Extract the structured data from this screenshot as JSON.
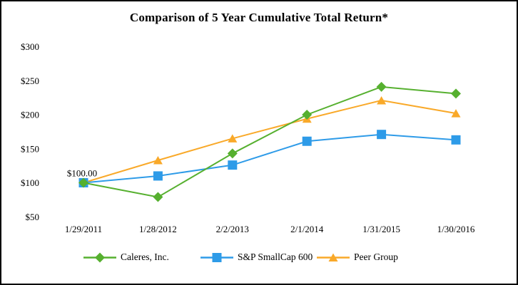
{
  "chart_data": {
    "type": "line",
    "title": "Comparison of 5 Year Cumulative Total Return*",
    "categories": [
      "1/29/2011",
      "1/28/2012",
      "2/2/2013",
      "2/1/2014",
      "1/31/2015",
      "1/30/2016"
    ],
    "series": [
      {
        "name": "Caleres, Inc.",
        "marker": "diamond",
        "color": "#56B02F",
        "values": [
          100,
          79,
          143,
          200,
          241,
          231
        ]
      },
      {
        "name": "S&P SmallCap 600",
        "marker": "square",
        "color": "#2E9BE8",
        "values": [
          100,
          110,
          126,
          161,
          171,
          163
        ]
      },
      {
        "name": "Peer Group",
        "marker": "triangle",
        "color": "#F9A929",
        "values": [
          100,
          133,
          165,
          194,
          221,
          202
        ]
      }
    ],
    "ylim": [
      50,
      300
    ],
    "yticks": [
      300,
      250,
      200,
      150,
      100,
      50
    ],
    "ytick_prefix": "$",
    "xlabel": "",
    "ylabel": "",
    "grid": false,
    "legend_position": "bottom",
    "annotations": [
      {
        "text": "$100.00",
        "series_index": 0,
        "point_index": 0
      }
    ],
    "colors": {
      "caleres": "#56B02F",
      "sp_smallcap_600": "#2E9BE8",
      "peer_group": "#F9A929",
      "text": "#000000",
      "background": "#FFFFFF",
      "border": "#000000"
    }
  }
}
